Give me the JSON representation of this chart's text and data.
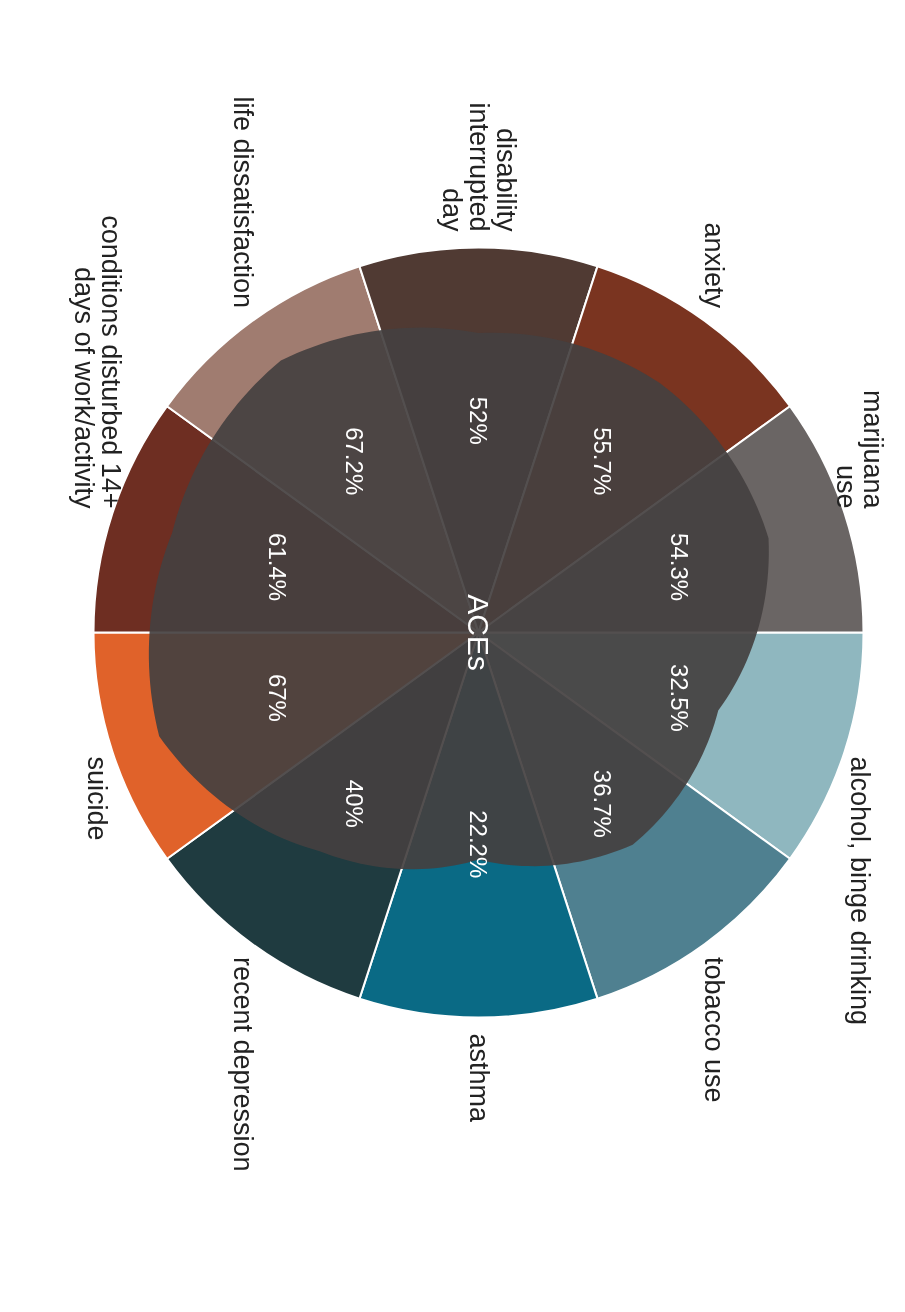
{
  "chart_data": {
    "type": "other",
    "categories": [
      "alcohol, binge drinking",
      "tobacco use",
      "asthma",
      "recent depression",
      "suicide",
      "conditions disturbed 14+\ndays of work/activity",
      "life dissatisfaction",
      "disability\ninterrupted\nday",
      "anxiety",
      "marijuana\nuse"
    ],
    "values": [
      32.5,
      36.7,
      22.2,
      40,
      67,
      61.4,
      67.2,
      52,
      55.7,
      54.3
    ],
    "value_labels": [
      "32.5%",
      "36.7%",
      "22.2%",
      "40%",
      "67%",
      "61.4%",
      "67.2%",
      "52%",
      "55.7%",
      "54.3%"
    ],
    "colors": [
      "#8fb7bf",
      "#4f8090",
      "#0a6a85",
      "#1f3b40",
      "#e0622a",
      "#6e2e22",
      "#a07c70",
      "#503a33",
      "#7a3420",
      "#6a6564"
    ],
    "annotations": [
      "ACEs"
    ]
  }
}
